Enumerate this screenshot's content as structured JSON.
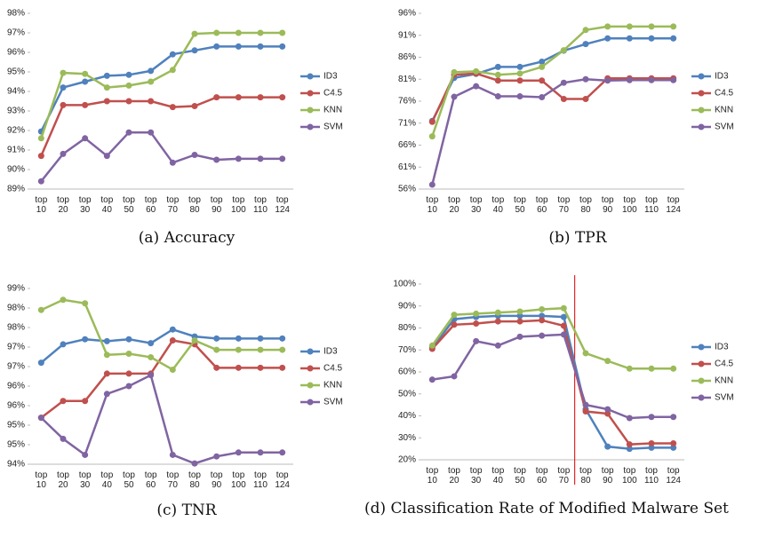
{
  "chart_data": [
    {
      "type": "line",
      "title": "(a) Accuracy",
      "categories": [
        "top 10",
        "top 20",
        "top 30",
        "top 40",
        "top 50",
        "top 60",
        "top 70",
        "top 80",
        "top 90",
        "top 100",
        "top 110",
        "top 124"
      ],
      "series": [
        {
          "name": "ID3",
          "color": "#4f81bd",
          "values": [
            91.95,
            94.2,
            94.5,
            94.8,
            94.85,
            95.05,
            95.9,
            96.1,
            96.3,
            96.3,
            96.3,
            96.3
          ]
        },
        {
          "name": "C4.5",
          "color": "#c0504d",
          "values": [
            90.7,
            93.3,
            93.3,
            93.5,
            93.5,
            93.5,
            93.2,
            93.25,
            93.7,
            93.7,
            93.7,
            93.7
          ]
        },
        {
          "name": "KNN",
          "color": "#9bbb59",
          "values": [
            91.6,
            94.95,
            94.9,
            94.2,
            94.3,
            94.5,
            95.1,
            96.95,
            97.0,
            97.0,
            97.0,
            97.0
          ]
        },
        {
          "name": "SVM",
          "color": "#8064a2",
          "values": [
            89.4,
            90.8,
            91.6,
            90.7,
            91.9,
            91.9,
            90.35,
            90.75,
            90.5,
            90.55,
            90.55,
            90.55
          ]
        }
      ],
      "ylim": [
        89,
        98
      ],
      "yticks": [
        {
          "value": 89,
          "label": "89%"
        },
        {
          "value": 90,
          "label": "90%"
        },
        {
          "value": 91,
          "label": "91%"
        },
        {
          "value": 92,
          "label": "92%"
        },
        {
          "value": 93,
          "label": "93%"
        },
        {
          "value": 94,
          "label": "94%"
        },
        {
          "value": 95,
          "label": "95%"
        },
        {
          "value": 96,
          "label": "96%"
        },
        {
          "value": 97,
          "label": "97%"
        },
        {
          "value": 98,
          "label": "98%"
        }
      ],
      "legend": "right"
    },
    {
      "type": "line",
      "title": "(b) TPR",
      "categories": [
        "top 10",
        "top 20",
        "top 30",
        "top 40",
        "top 50",
        "top 60",
        "top 70",
        "top 80",
        "top 90",
        "top 100",
        "top 110",
        "top 124"
      ],
      "series": [
        {
          "name": "ID3",
          "color": "#4f81bd",
          "values": [
            71.5,
            81.3,
            82.2,
            83.8,
            83.8,
            85,
            87.5,
            89,
            90.3,
            90.3,
            90.3,
            90.3
          ]
        },
        {
          "name": "C4.5",
          "color": "#c0504d",
          "values": [
            71.3,
            82,
            82.3,
            80.7,
            80.7,
            80.7,
            76.5,
            76.5,
            81.2,
            81.2,
            81.2,
            81.2
          ]
        },
        {
          "name": "KNN",
          "color": "#9bbb59",
          "values": [
            68,
            82.6,
            82.8,
            82,
            82.3,
            83.8,
            87.6,
            92.2,
            93,
            93,
            93,
            93
          ]
        },
        {
          "name": "SVM",
          "color": "#8064a2",
          "values": [
            57,
            77,
            79.4,
            77.1,
            77.1,
            76.9,
            80.2,
            81,
            80.7,
            80.8,
            80.8,
            80.8
          ]
        }
      ],
      "ylim": [
        56,
        96
      ],
      "yticks": [
        {
          "value": 56,
          "label": "56%"
        },
        {
          "value": 61,
          "label": "61%"
        },
        {
          "value": 66,
          "label": "66%"
        },
        {
          "value": 71,
          "label": "71%"
        },
        {
          "value": 76,
          "label": "76%"
        },
        {
          "value": 81,
          "label": "81%"
        },
        {
          "value": 86,
          "label": "86%"
        },
        {
          "value": 91,
          "label": "91%"
        },
        {
          "value": 96,
          "label": "96%"
        }
      ],
      "legend": "right"
    },
    {
      "type": "line",
      "title": "(c) TNR",
      "categories": [
        "top 10",
        "top 20",
        "top 30",
        "top 40",
        "top 50",
        "top 60",
        "top 70",
        "top 80",
        "top 90",
        "top 100",
        "top 110",
        "top 124"
      ],
      "series": [
        {
          "name": "ID3",
          "color": "#4f81bd",
          "values": [
            96.6,
            97.07,
            97.2,
            97.15,
            97.2,
            97.1,
            97.45,
            97.27,
            97.22,
            97.22,
            97.22,
            97.22
          ]
        },
        {
          "name": "C4.5",
          "color": "#c0504d",
          "values": [
            95.19,
            95.62,
            95.62,
            96.32,
            96.32,
            96.32,
            97.17,
            97.07,
            96.47,
            96.47,
            96.47,
            96.47
          ]
        },
        {
          "name": "KNN",
          "color": "#9bbb59",
          "values": [
            97.95,
            98.21,
            98.12,
            96.8,
            96.83,
            96.74,
            96.42,
            97.17,
            96.93,
            96.93,
            96.93,
            96.93
          ]
        },
        {
          "name": "SVM",
          "color": "#8064a2",
          "values": [
            95.19,
            94.65,
            94.24,
            95.8,
            96.0,
            96.28,
            94.24,
            94.02,
            94.2,
            94.3,
            94.3,
            94.3
          ]
        }
      ],
      "ylim": [
        94,
        98.5
      ],
      "yticks": [
        {
          "value": 94,
          "label": "94%"
        },
        {
          "value": 94.5,
          "label": "95%"
        },
        {
          "value": 95,
          "label": "95%"
        },
        {
          "value": 95.5,
          "label": "96%"
        },
        {
          "value": 96,
          "label": "96%"
        },
        {
          "value": 96.5,
          "label": "97%"
        },
        {
          "value": 97,
          "label": "97%"
        },
        {
          "value": 97.5,
          "label": "98%"
        },
        {
          "value": 98,
          "label": "98%"
        },
        {
          "value": 98.5,
          "label": "99%"
        }
      ],
      "legend": "right"
    },
    {
      "type": "line",
      "title": "(d) Classification Rate of Modified Malware Set",
      "categories": [
        "top 10",
        "top 20",
        "top 30",
        "top 40",
        "top 50",
        "top 60",
        "top 70",
        "top 80",
        "top 90",
        "top 100",
        "top 110",
        "top 124"
      ],
      "series": [
        {
          "name": "ID3",
          "color": "#4f81bd",
          "values": [
            71,
            84,
            85,
            85.5,
            85.5,
            85.5,
            85,
            43,
            26,
            25,
            25.5,
            25.5
          ]
        },
        {
          "name": "C4.5",
          "color": "#c0504d",
          "values": [
            70.5,
            81.5,
            82,
            83,
            83,
            83.5,
            81,
            42,
            41,
            27,
            27.5,
            27.5
          ]
        },
        {
          "name": "KNN",
          "color": "#9bbb59",
          "values": [
            72,
            86,
            86.5,
            87,
            87.5,
            88.5,
            89,
            68.5,
            65,
            61.5,
            61.5,
            61.5
          ]
        },
        {
          "name": "SVM",
          "color": "#8064a2",
          "values": [
            56.5,
            58,
            74,
            72,
            76,
            76.5,
            77,
            45,
            43,
            39,
            39.5,
            39.5
          ]
        }
      ],
      "ylim": [
        20,
        100
      ],
      "yticks": [
        {
          "value": 20,
          "label": "20%"
        },
        {
          "value": 30,
          "label": "30%"
        },
        {
          "value": 40,
          "label": "40%"
        },
        {
          "value": 50,
          "label": "50%"
        },
        {
          "value": 60,
          "label": "60%"
        },
        {
          "value": 70,
          "label": "70%"
        },
        {
          "value": 80,
          "label": "80%"
        },
        {
          "value": 90,
          "label": "90%"
        },
        {
          "value": 100,
          "label": "100%"
        }
      ],
      "legend": "right"
    }
  ]
}
